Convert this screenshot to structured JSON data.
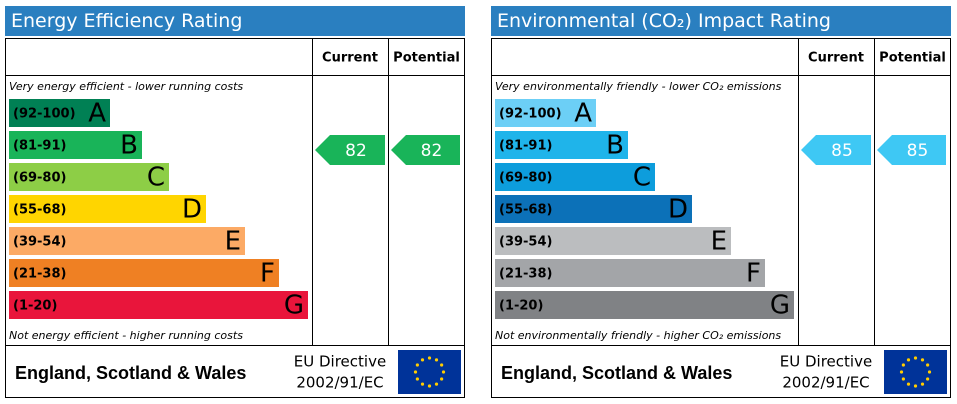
{
  "panels": [
    {
      "title": "Energy Efficiency Rating",
      "columns": [
        "Current",
        "Potential"
      ],
      "top_note": "Very energy efficient - lower running costs",
      "bottom_note": "Not energy efficient - higher running costs",
      "bands": [
        {
          "range": "(92-100)",
          "letter": "A",
          "color": "#008054"
        },
        {
          "range": "(81-91)",
          "letter": "B",
          "color": "#19b459"
        },
        {
          "range": "(69-80)",
          "letter": "C",
          "color": "#8dce46"
        },
        {
          "range": "(55-68)",
          "letter": "D",
          "color": "#ffd500"
        },
        {
          "range": "(39-54)",
          "letter": "E",
          "color": "#fcaa65"
        },
        {
          "range": "(21-38)",
          "letter": "F",
          "color": "#ef8023"
        },
        {
          "range": "(1-20)",
          "letter": "G",
          "color": "#e9153b"
        }
      ],
      "current": "82",
      "potential": "82",
      "arrow_color": "#19b459",
      "footer": "England, Scotland & Wales",
      "directive": [
        "EU Directive",
        "2002/91/EC"
      ]
    },
    {
      "title": "Environmental (CO₂) Impact Rating",
      "columns": [
        "Current",
        "Potential"
      ],
      "top_note": "Very environmentally friendly - lower CO₂ emissions",
      "bottom_note": "Not environmentally friendly - higher CO₂ emissions",
      "bands": [
        {
          "range": "(92-100)",
          "letter": "A",
          "color": "#6ccff6"
        },
        {
          "range": "(81-91)",
          "letter": "B",
          "color": "#1fb4ea"
        },
        {
          "range": "(69-80)",
          "letter": "C",
          "color": "#0d9ddc"
        },
        {
          "range": "(55-68)",
          "letter": "D",
          "color": "#0c71b8"
        },
        {
          "range": "(39-54)",
          "letter": "E",
          "color": "#bbbdbf"
        },
        {
          "range": "(21-38)",
          "letter": "F",
          "color": "#a3a5a8"
        },
        {
          "range": "(1-20)",
          "letter": "G",
          "color": "#808285"
        }
      ],
      "current": "85",
      "potential": "85",
      "arrow_color": "#3ec8f4",
      "footer": "England, Scotland & Wales",
      "directive": [
        "EU Directive",
        "2002/91/EC"
      ]
    }
  ]
}
